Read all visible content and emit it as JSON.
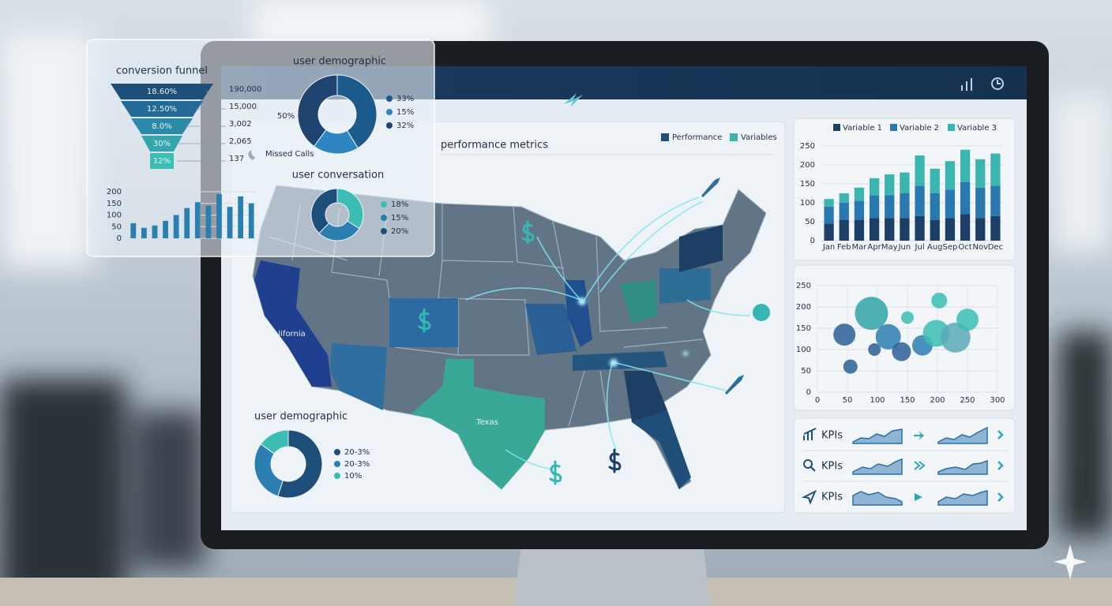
{
  "chart_data": [
    {
      "type": "funnel",
      "title": "conversion funnel",
      "categories": [
        "18.60%",
        "12.50%",
        "8.0%",
        "30%",
        "12%"
      ],
      "values": [
        190000,
        15000,
        3002,
        2065,
        137
      ],
      "value_labels": [
        "190,000",
        "15,000",
        "3,002",
        "2,065",
        "137"
      ],
      "colors": [
        "#1d4f7a",
        "#236a96",
        "#2b8aa8",
        "#32a5ad",
        "#3bbdb3"
      ],
      "annotation": "Missed Calls"
    },
    {
      "type": "bar",
      "values": [
        65,
        45,
        55,
        75,
        100,
        130,
        155,
        140,
        190,
        135,
        180,
        150
      ],
      "color": "#2a7fb0",
      "ylim": [
        0,
        200
      ],
      "yticks": [
        0,
        50,
        100,
        150,
        200
      ]
    },
    {
      "type": "donut",
      "title": "user demographic",
      "values": [
        33,
        15,
        32
      ],
      "value_labels": [
        "33%",
        "15%",
        "32%"
      ],
      "colors": [
        "#1d5a8c",
        "#2c86c2",
        "#1f4470"
      ],
      "annotation": "50%"
    },
    {
      "type": "donut",
      "title": "user conversation",
      "values": [
        18,
        15,
        20
      ],
      "value_labels": [
        "18%",
        "15%",
        "20%"
      ],
      "colors": [
        "#3bbdb3",
        "#2a7fb0",
        "#1d4f7a"
      ]
    },
    {
      "type": "map",
      "title": "performance metrics",
      "series": [
        {
          "name": "Performance",
          "color": "#1d4f7a"
        },
        {
          "name": "Variables",
          "color": "#3bb3ae"
        }
      ],
      "labels": [
        "California",
        "Texas"
      ]
    },
    {
      "type": "donut",
      "title": "user demographic",
      "categories": [
        "20-3%",
        "20-3%",
        "10%"
      ],
      "values": [
        55,
        30,
        15
      ],
      "colors": [
        "#1d4f7a",
        "#2a7fb0",
        "#3bbdb3"
      ]
    },
    {
      "type": "stacked_bar",
      "categories": [
        "Jan",
        "Feb",
        "Mar",
        "Apr",
        "May",
        "Jun",
        "Jul",
        "Aug",
        "Sep",
        "Oct",
        "Nov",
        "Dec"
      ],
      "series": [
        {
          "name": "Variable 1",
          "color": "#1b3f66",
          "values": [
            45,
            55,
            55,
            60,
            60,
            60,
            65,
            55,
            60,
            70,
            60,
            65
          ]
        },
        {
          "name": "Variable 2",
          "color": "#2a78b0",
          "values": [
            45,
            45,
            50,
            60,
            60,
            65,
            80,
            70,
            75,
            85,
            80,
            80
          ]
        },
        {
          "name": "Variable 3",
          "color": "#3ab5b0",
          "values": [
            20,
            25,
            35,
            45,
            55,
            55,
            80,
            65,
            75,
            85,
            75,
            85
          ]
        }
      ],
      "ylim": [
        0,
        250
      ],
      "yticks": [
        0,
        50,
        100,
        150,
        200,
        250
      ]
    },
    {
      "type": "scatter",
      "x": [
        45,
        55,
        95,
        90,
        118,
        150,
        140,
        175,
        203,
        198,
        230,
        250
      ],
      "values": [
        135,
        60,
        100,
        185,
        130,
        175,
        95,
        110,
        215,
        138,
        128,
        170
      ],
      "sizes": [
        14,
        9,
        8,
        21,
        16,
        8,
        12,
        13,
        10,
        17,
        19,
        14
      ],
      "colors": [
        "#2a5f95",
        "#2a5f95",
        "#2a5f95",
        "#2fa3a8",
        "#2a7fb0",
        "#3bbdb3",
        "#2a5f95",
        "#2a7fb0",
        "#3bbdb3",
        "#3bbdb3",
        "#5aa9b8",
        "#3bbdb3"
      ],
      "xlim": [
        0,
        300
      ],
      "xticks": [
        0,
        50,
        100,
        150,
        200,
        250,
        300
      ],
      "ylim": [
        0,
        250
      ],
      "yticks": [
        0,
        50,
        100,
        150,
        200,
        250
      ]
    }
  ],
  "kpis": [
    "KPIs",
    "KPIs",
    "KPIs"
  ]
}
